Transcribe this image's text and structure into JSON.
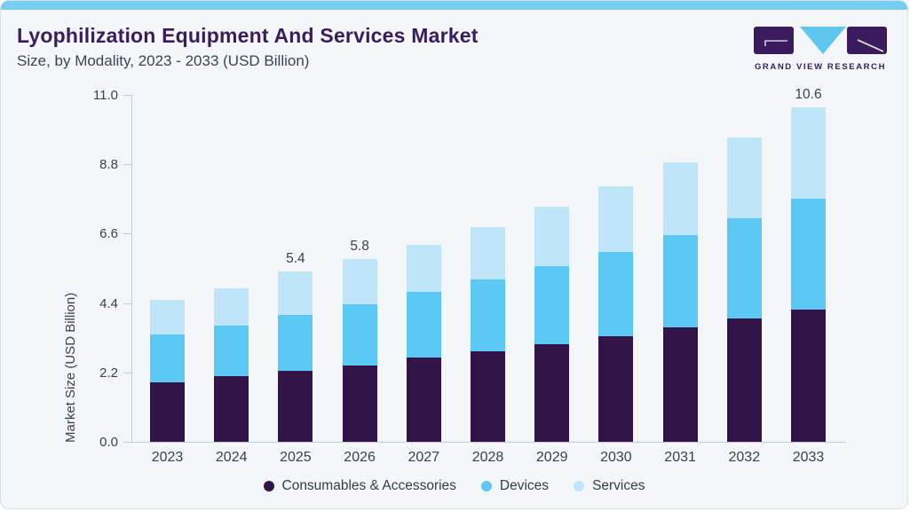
{
  "header": {
    "title": "Lyophilization Equipment And Services Market",
    "subtitle": "Size, by Modality, 2023 - 2033 (USD Billion)"
  },
  "logo": {
    "wordmark": "GRAND VIEW RESEARCH"
  },
  "colors": {
    "accent_top_bar": "#74cff2",
    "title_purple": "#3a1c5e",
    "card_background": "#f3f7fa",
    "axis_line": "#c5cbd3",
    "axis_text": "#3b414c",
    "logo_purple": "#3a1c5e",
    "logo_triangle_blue": "#5ec7ee"
  },
  "chart_data": {
    "type": "bar",
    "stacked": true,
    "title": "Lyophilization Equipment And Services Market",
    "subtitle": "Size, by Modality, 2023 - 2033 (USD Billion)",
    "xlabel": "",
    "ylabel": "Market Size (USD Billion)",
    "ylim": [
      0,
      11.0
    ],
    "yticks": [
      "0.0",
      "2.2",
      "4.4",
      "6.6",
      "8.8",
      "11.0"
    ],
    "grid": false,
    "legend_position": "bottom",
    "categories": [
      "2023",
      "2024",
      "2025",
      "2026",
      "2027",
      "2028",
      "2029",
      "2030",
      "2031",
      "2032",
      "2033"
    ],
    "series": [
      {
        "name": "Consumables & Accessories",
        "color": "#331449",
        "values": [
          1.9,
          2.08,
          2.26,
          2.43,
          2.67,
          2.87,
          3.09,
          3.34,
          3.63,
          3.91,
          4.19
        ]
      },
      {
        "name": "Devices",
        "color": "#5bc9f3",
        "values": [
          1.5,
          1.62,
          1.76,
          1.92,
          2.08,
          2.27,
          2.49,
          2.69,
          2.92,
          3.18,
          3.52
        ]
      },
      {
        "name": "Services",
        "color": "#bfe6f8",
        "values": [
          1.1,
          1.18,
          1.38,
          1.45,
          1.5,
          1.66,
          1.87,
          2.07,
          2.3,
          2.57,
          2.89
        ]
      }
    ],
    "totals": [
      4.5,
      4.88,
      5.4,
      5.8,
      6.25,
      6.8,
      7.45,
      8.1,
      8.85,
      9.66,
      10.6
    ],
    "bar_labels": {
      "2025": "5.4",
      "2026": "5.8",
      "2033": "10.6"
    }
  }
}
